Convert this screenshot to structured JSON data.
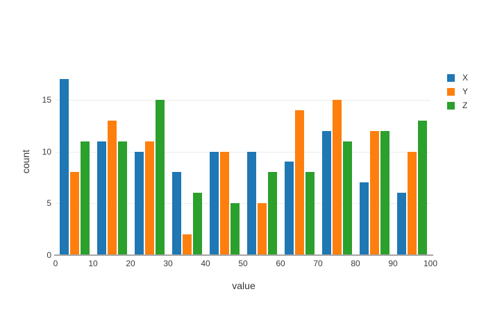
{
  "chart_data": {
    "type": "bar",
    "mode": "grouped",
    "title": "",
    "xlabel": "value",
    "ylabel": "count",
    "categories": [
      "0-10",
      "10-20",
      "20-30",
      "30-40",
      "40-50",
      "50-60",
      "60-70",
      "70-80",
      "80-90",
      "90-100"
    ],
    "bin_edges": [
      0,
      10,
      20,
      30,
      40,
      50,
      60,
      70,
      80,
      90,
      100
    ],
    "series": [
      {
        "name": "X",
        "color": "#1f77b4",
        "values": [
          17,
          11,
          10,
          8,
          10,
          10,
          9,
          12,
          7,
          6
        ]
      },
      {
        "name": "Y",
        "color": "#ff7f0e",
        "values": [
          8,
          13,
          11,
          2,
          10,
          5,
          14,
          15,
          12,
          10
        ]
      },
      {
        "name": "Z",
        "color": "#2ca02c",
        "values": [
          11,
          11,
          15,
          6,
          5,
          8,
          8,
          11,
          12,
          13
        ]
      }
    ],
    "xlim": [
      0,
      100
    ],
    "ylim": [
      0,
      18
    ],
    "xticks": [
      0,
      10,
      20,
      30,
      40,
      50,
      60,
      70,
      80,
      90,
      100
    ],
    "yticks": [
      0,
      5,
      10,
      15
    ],
    "grid": "horizontal",
    "gridline_color": "#ececec",
    "axis_line_color": "#a6a6a6",
    "legend_position": "top-right",
    "background_color": "#ffffff"
  }
}
